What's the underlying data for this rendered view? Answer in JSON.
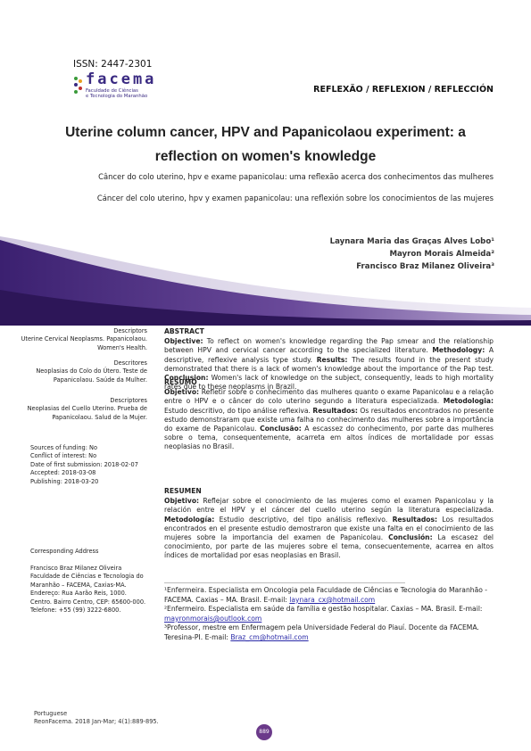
{
  "header": {
    "issn": "ISSN: 2447-2301",
    "logo_word": "facema",
    "logo_sub_1": "Faculdade de Ciências",
    "logo_sub_2": "e Tecnologia do Maranhão",
    "section": "REFLEXÃO / REFLEXION / REFLECCIÓN"
  },
  "article": {
    "title_line_1": "Uterine column cancer, HPV and Papanicolaou experiment: a",
    "title_line_2": "reflection on women's knowledge",
    "alt_title_pt": "Câncer do colo uterino, hpv e exame papanicolau: uma reflexão acerca dos  conhecimentos das mulheres",
    "alt_title_es": "Cáncer del colo uterino, hpv y examen papanicolau: una reflexión sobre los conocimientos de las mujeres",
    "authors": [
      "Laynara Maria das Graças Alves Lobo¹",
      "Mayron Morais Almeida²",
      "Francisco Braz Milanez Oliveira³"
    ]
  },
  "left_column": {
    "kw_en_head": "Descriptors",
    "kw_en_body": "Uterine Cervical Neoplasms. Papanicolaou. Women's Health.",
    "kw_pt_head": "Descritores",
    "kw_pt_body": "Neoplasias do Colo do Útero. Teste de Papanicolaou. Saúde da Mulher.",
    "kw_es_head": "Descriptores",
    "kw_es_body": "Neoplasias del Cuello Uterino. Prueba de Papanicolaou. Salud de la Mujer.",
    "meta": [
      "Sources of funding: No",
      "Conflict of interest: No",
      "Date of first submission: 2018-02-07",
      "Accepted: 2018-03-08",
      "Publishing: 2018-03-20"
    ],
    "corr_title": "Corresponding Address",
    "corr_body": [
      "Francisco Braz Milanez Oliveira",
      "Faculdade de Ciências e Tecnologia do Maranhão – FACEMA, Caxias-MA.",
      "Endereço: Rua Aarão Reis, 1000.",
      "Centro. Bairro Centro, CEP: 65600-000.",
      "Telefone: +55 (99) 3222-6800."
    ]
  },
  "abstract": {
    "head": "ABSTRACT",
    "objective_label": "Objective:",
    "objective": " To reflect on women's knowledge regarding the Pap smear and the relationship between HPV and cervical cancer according to the specialized literature. ",
    "methodology_label": "Methodology:",
    "methodology": " A descriptive, reflexive analysis type study. ",
    "results_label": "Results:",
    "results": " The results found in the present study demonstrated that there is a lack of women's knowledge about the importance of the Pap test. ",
    "conclusion_label": "Conclusion:",
    "conclusion": " Women's lack of knowledge on the subject, consequently, leads to high mortality rates due to these neoplasms in Brazil."
  },
  "resumo": {
    "head": "RESUMO",
    "objective_label": "Objetivo:",
    "objective": " Refletir sobre o conhecimento das mulheres quanto o exame Papanicolau e a relação entre o HPV e o câncer do colo uterino segundo a literatura especializada. ",
    "methodology_label": "Metodologia:",
    "methodology": " Estudo descritivo, do tipo análise reflexiva. ",
    "results_label": "Resultados:",
    "results": " Os resultados encontrados no presente estudo demonstraram que existe uma falha no conhecimento das mulheres sobre a importância do exame de Papanicolau. ",
    "conclusion_label": "Conclusão:",
    "conclusion": " A escassez do conhecimento, por parte das mulheres sobre o tema, consequentemente, acarreta em altos índices de mortalidade por essas neoplasias no Brasil."
  },
  "resumen": {
    "head": "RESUMEN",
    "objective_label": "Objetivo:",
    "objective": " Reflejar sobre el conocimiento de las mujeres como el examen Papanicolau y la relación entre el HPV y el cáncer del cuello uterino según la literatura especializada. ",
    "methodology_label": "Metodología:",
    "methodology": " Estudio descriptivo, del tipo análisis reflexivo. ",
    "results_label": "Resultados:",
    "results": " Los resultados encontrados en el presente estudio demostraron que existe una falta en el conocimiento de las mujeres sobre la importancia del examen de Papanicolau. ",
    "conclusion_label": "Conclusión:",
    "conclusion": " La escasez del conocimiento, por parte de las mujeres sobre el tema, consecuentemente, acarrea en altos índices de mortalidad por esas neoplasias en Brasil."
  },
  "footnotes": {
    "fn1_text": "¹Enfermeira. Especialista em Oncologia pela Faculdade de Ciências e Tecnologia do Maranhão - FACEMA. Caxias – MA. Brasil. E-mail: ",
    "fn1_email": "laynara_cx@hotmail.com",
    "fn2_text": "²Enfermeiro. Especialista em saúde da família e gestão hospitalar. Caxias – MA. Brasil. E-mail: ",
    "fn2_email": "mayronmorais@outlook.com",
    "fn3_text": "³Professor, mestre em Enfermagem pela Universidade Federal do Piauí. Docente da FACEMA. Teresina-PI. E-mail: ",
    "fn3_email": "Braz_cm@hotmail.com"
  },
  "footer": {
    "language": "Portuguese",
    "citation": "ReonFacema. 2018 Jan-Mar; 4(1):889-895.",
    "page_number": "889"
  },
  "colors": {
    "accent_purple": "#5a3a8e",
    "swoosh_dark": "#4b2a7a",
    "link_blue": "#2a2aa8"
  }
}
